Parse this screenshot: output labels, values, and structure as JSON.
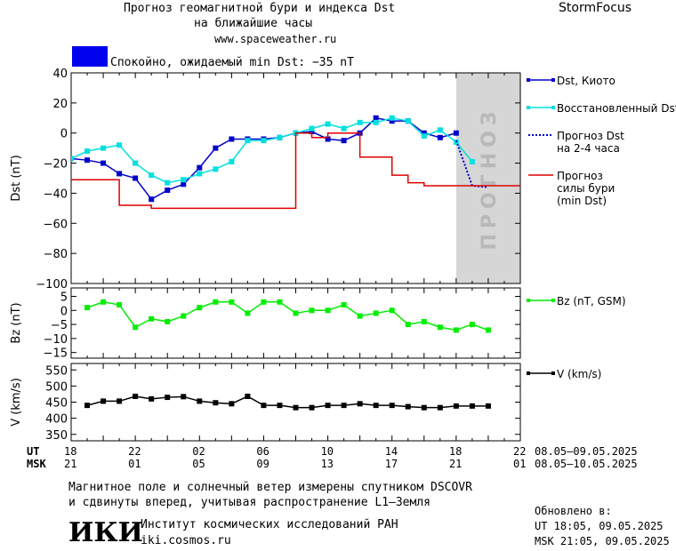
{
  "header": {
    "title_line1": "Прогноз геомагнитной бури и индекса Dst",
    "title_line2": "на ближайшие часы",
    "site": "www.spaceweather.ru",
    "brand": "StormFocus",
    "status_text": "Спокойно, ожидаемый min Dst: −35 nT",
    "status_color": "#0000ee"
  },
  "forecast_zone_label": "ПРОГНОЗ",
  "time_axis": {
    "ut_label": "UT",
    "msk_label": "MSK",
    "ut_ticks": [
      "18",
      "22",
      "02",
      "06",
      "10",
      "14",
      "18",
      "22"
    ],
    "msk_ticks": [
      "21",
      "01",
      "05",
      "09",
      "13",
      "17",
      "21",
      "01"
    ],
    "ut_range": "08.05–09.05.2025",
    "msk_range": "08.05–10.05.2025"
  },
  "footer": {
    "line1": "Магнитное поле и солнечный ветер измерены спутником DSCOVR",
    "line2": "и сдвинуты вперед, учитывая распространение L1–Земля",
    "logo": "ИКИ",
    "institute": "Институт космических исследований РАН",
    "institute_site": "iki.cosmos.ru",
    "updated_label": "Обновлено в:",
    "updated_ut": "UT  18:05, 09.05.2025",
    "updated_msk": "MSK 21:05, 09.05.2025"
  },
  "chart_data": [
    {
      "type": "line",
      "panel": "dst",
      "ylabel": "Dst (nT)",
      "ylim": [
        -100,
        40
      ],
      "yticks": [
        40,
        20,
        0,
        -20,
        -40,
        -60,
        -80,
        -100
      ],
      "x_units": "hours from 18 UT, 08.05.2025",
      "xlim": [
        0,
        28
      ],
      "forecast_region": [
        24,
        28
      ],
      "series": [
        {
          "name": "Dst, Киото",
          "color": "#0000cc",
          "marker": "square",
          "x": [
            0,
            1,
            2,
            3,
            4,
            5,
            6,
            7,
            8,
            9,
            10,
            11,
            12,
            13,
            14,
            15,
            16,
            17,
            18,
            19,
            20,
            21,
            22,
            23,
            24
          ],
          "y": [
            -17,
            -18,
            -20,
            -27,
            -30,
            -44,
            -38,
            -34,
            -23,
            -10,
            -4,
            -4,
            -4,
            -3,
            0,
            1,
            -4,
            -5,
            0,
            10,
            8,
            8,
            0,
            -3,
            0
          ]
        },
        {
          "name": "Восстановленный Dst",
          "color": "#00e0e0",
          "marker": "square",
          "x": [
            0,
            1,
            2,
            3,
            4,
            5,
            6,
            7,
            8,
            9,
            10,
            11,
            12,
            13,
            14,
            15,
            16,
            17,
            18,
            19,
            20,
            21,
            22,
            23,
            24,
            25
          ],
          "y": [
            -17,
            -12,
            -10,
            -8,
            -20,
            -28,
            -33,
            -31,
            -27,
            -24,
            -19,
            -5,
            -5,
            -3,
            0,
            3,
            6,
            3,
            7,
            7,
            10,
            8,
            -2,
            2,
            -6,
            -19
          ]
        },
        {
          "name": "Прогноз Dst\nна 2-4 часа",
          "color": "#0000cc",
          "style": "dotted",
          "x": [
            24,
            25,
            26
          ],
          "y": [
            -5,
            -35,
            -36
          ]
        },
        {
          "name": "Прогноз\nсилы бури\n(min Dst)",
          "color": "#dd0000",
          "style": "step",
          "x": [
            0,
            2,
            3,
            4,
            5,
            13,
            14,
            15,
            16,
            17,
            18,
            19,
            20,
            21,
            22,
            28
          ],
          "y": [
            -31,
            -31,
            -48,
            -48,
            -50,
            -50,
            0,
            -3,
            0,
            0,
            -16,
            -16,
            -28,
            -33,
            -35,
            -35
          ]
        }
      ]
    },
    {
      "type": "line",
      "panel": "bz",
      "ylabel": "Bz (nT)",
      "ylim": [
        -17,
        8
      ],
      "yticks": [
        5,
        0,
        -5,
        -10,
        -15
      ],
      "series": [
        {
          "name": "Bz (nT, GSM)",
          "color": "#00ee00",
          "marker": "square",
          "x": [
            1,
            2,
            3,
            4,
            5,
            6,
            7,
            8,
            9,
            10,
            11,
            12,
            13,
            14,
            15,
            16,
            17,
            18,
            19,
            20,
            21,
            22,
            23,
            24,
            25,
            26
          ],
          "y": [
            1,
            3,
            2,
            -6,
            -3,
            -4,
            -2,
            1,
            3,
            3,
            -1,
            3,
            3,
            -1,
            0,
            0,
            2,
            -2,
            -1,
            0,
            -5,
            -4,
            -6,
            -7,
            -5,
            -7
          ]
        }
      ]
    },
    {
      "type": "line",
      "panel": "v",
      "ylabel": "V (km/s)",
      "ylim": [
        330,
        570
      ],
      "yticks": [
        550,
        500,
        450,
        400,
        350
      ],
      "series": [
        {
          "name": "V (km/s)",
          "color": "#000000",
          "marker": "square",
          "x": [
            1,
            2,
            3,
            4,
            5,
            6,
            7,
            8,
            9,
            10,
            11,
            12,
            13,
            14,
            15,
            16,
            17,
            18,
            19,
            20,
            21,
            22,
            23,
            24,
            25,
            26
          ],
          "y": [
            440,
            453,
            453,
            468,
            460,
            465,
            467,
            453,
            448,
            445,
            468,
            440,
            440,
            433,
            433,
            440,
            440,
            445,
            440,
            440,
            436,
            433,
            433,
            438,
            438,
            438
          ]
        }
      ]
    }
  ]
}
